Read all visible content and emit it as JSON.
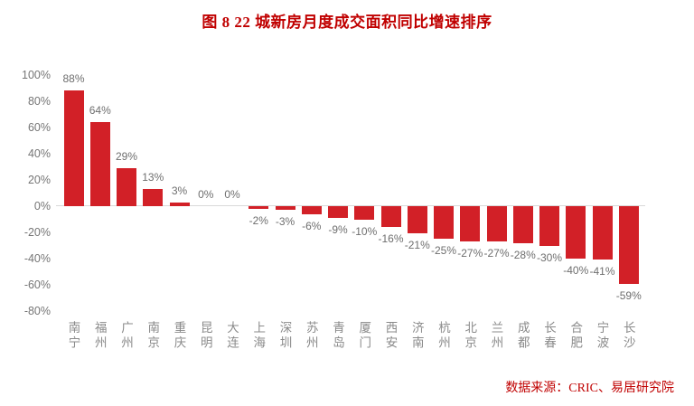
{
  "title": "图 8  22 城新房月度成交面积同比增速排序",
  "source_note": "数据来源：CRIC、易居研究院",
  "colors": {
    "bar": "#D22027",
    "title_red": "#C00000",
    "source_red": "#C00000",
    "label_gray": "#6E6E6E",
    "axis_gray": "#757575",
    "zero_line": "#D9D9D9"
  },
  "chart_data": {
    "type": "bar",
    "title": "图 8  22 城新房月度成交面积同比增速排序",
    "categories": [
      "南宁",
      "福州",
      "广州",
      "南京",
      "重庆",
      "昆明",
      "大连",
      "上海",
      "深圳",
      "苏州",
      "青岛",
      "厦门",
      "西安",
      "济南",
      "杭州",
      "北京",
      "兰州",
      "成都",
      "长春",
      "合肥",
      "宁波",
      "长沙"
    ],
    "values": [
      88,
      64,
      29,
      13,
      3,
      0,
      0,
      -2,
      -3,
      -6,
      -9,
      -10,
      -16,
      -21,
      -25,
      -27,
      -27,
      -28,
      -30,
      -40,
      -41,
      -59
    ],
    "value_labels": [
      "88%",
      "64%",
      "29%",
      "13%",
      "3%",
      "0%",
      "0%",
      "-2%",
      "-3%",
      "-6%",
      "-9%",
      "-10%",
      "-16%",
      "-21%",
      "-25%",
      "-27%",
      "-27%",
      "-28%",
      "-30%",
      "-40%",
      "-41%",
      "-59%"
    ],
    "y_tick_labels": [
      "100%",
      "80%",
      "60%",
      "40%",
      "20%",
      "0%",
      "-20%",
      "-40%",
      "-60%",
      "-80%"
    ],
    "y_tick_values": [
      100,
      80,
      60,
      40,
      20,
      0,
      -20,
      -40,
      -60,
      -80
    ],
    "ylim": [
      -80,
      100
    ],
    "xlabel": "",
    "ylabel": "",
    "grid": "off",
    "legend": "none",
    "bar_color": "#D22027",
    "source": "数据来源：CRIC、易居研究院"
  }
}
